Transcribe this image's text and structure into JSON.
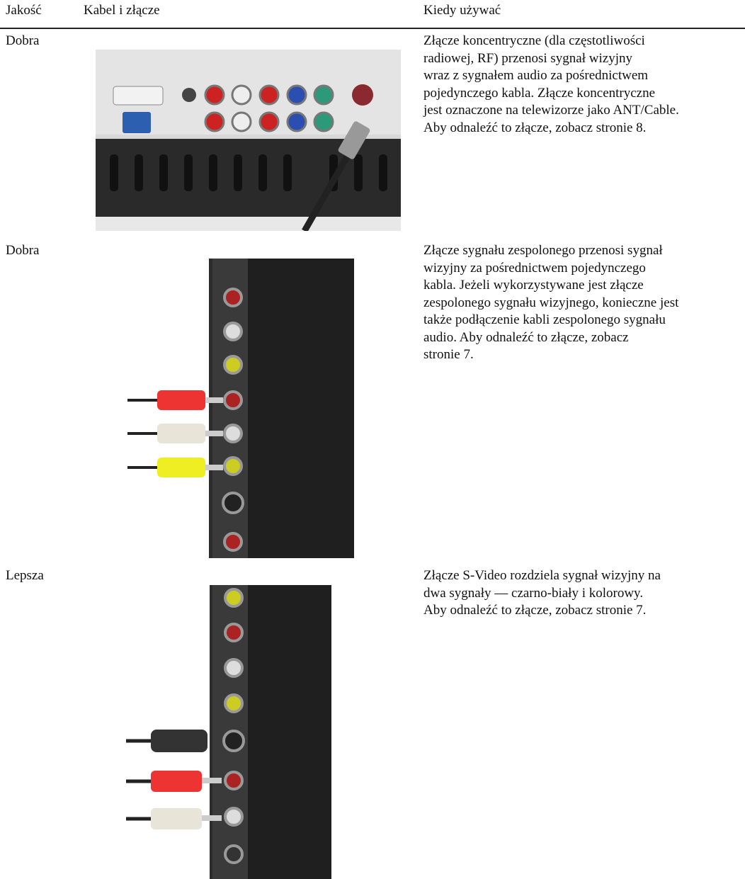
{
  "header": {
    "columns": [
      "Jakość",
      "Kabel i złącze",
      "Kiedy używać"
    ]
  },
  "rows": [
    {
      "quality": "Dobra",
      "description": [
        "Złącze koncentryczne (dla częstotliwości",
        "radiowej, RF) przenosi sygnał wizyjny",
        "wraz z sygnałem audio za pośrednictwem",
        "pojedynczego kabla. Złącze koncentryczne",
        "jest oznaczone na telewizorze jako ANT/Cable.",
        "Aby odnaleźć to złącze, zobacz stronie 8."
      ]
    },
    {
      "quality": "Dobra",
      "description": [
        "Złącze sygnału zespolonego przenosi sygnał",
        "wizyjny za pośrednictwem pojedynczego",
        "kabla. Jeżeli wykorzystywane jest złącze",
        "zespolonego sygnału wizyjnego, konieczne jest",
        "także podłączenie kabli zespolonego sygnału",
        "audio. Aby odnaleźć to złącze, zobacz",
        "stronie 7."
      ]
    },
    {
      "quality": "Lepsza",
      "description": [
        "Złącze S-Video rozdziela sygnał wizyjny na",
        "dwa sygnały — czarno-biały i kolorowy.",
        "Aby odnaleźć to złącze, zobacz stronie 7."
      ]
    }
  ]
}
